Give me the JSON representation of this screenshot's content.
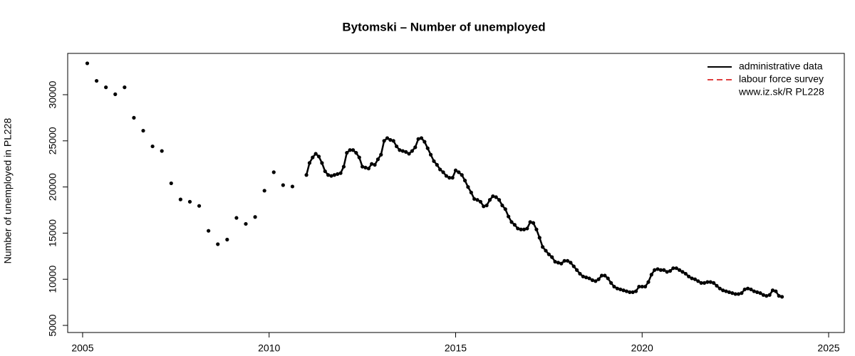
{
  "chart_data": {
    "type": "line",
    "title": "Bytomski – Number of unemployed",
    "y_label": "Number of unemployed in PL228",
    "legend_position": "top-right",
    "legend_note": "www.iz.sk/R PL228",
    "xlim": [
      2004.6,
      2025.42
    ],
    "xticks": [
      2005,
      2010,
      2015,
      2020,
      2025
    ],
    "ylim": [
      4230,
      34475
    ],
    "yticks": [
      5000,
      10000,
      15000,
      20000,
      25000,
      30000
    ],
    "grid": false,
    "series": [
      {
        "name": "administrative data",
        "color": "#000000",
        "x": [
          2005.125,
          2005.375,
          2005.625,
          2005.875,
          2006.125,
          2006.375,
          2006.625,
          2006.875,
          2007.125,
          2007.375,
          2007.625,
          2007.875,
          2008.125,
          2008.375,
          2008.625,
          2008.875,
          2009.125,
          2009.375,
          2009.625,
          2009.875,
          2010.125,
          2010.375,
          2010.625,
          2011,
          2011.083,
          2011.167,
          2011.25,
          2011.333,
          2011.417,
          2011.5,
          2011.583,
          2011.667,
          2011.75,
          2011.833,
          2011.917,
          2012,
          2012.083,
          2012.167,
          2012.25,
          2012.333,
          2012.417,
          2012.5,
          2012.583,
          2012.667,
          2012.75,
          2012.833,
          2012.917,
          2013,
          2013.083,
          2013.167,
          2013.25,
          2013.333,
          2013.417,
          2013.5,
          2013.583,
          2013.667,
          2013.75,
          2013.833,
          2013.917,
          2014,
          2014.083,
          2014.167,
          2014.25,
          2014.333,
          2014.417,
          2014.5,
          2014.583,
          2014.667,
          2014.75,
          2014.833,
          2014.917,
          2015,
          2015.083,
          2015.167,
          2015.25,
          2015.333,
          2015.417,
          2015.5,
          2015.583,
          2015.667,
          2015.75,
          2015.833,
          2015.917,
          2016,
          2016.083,
          2016.167,
          2016.25,
          2016.333,
          2016.417,
          2016.5,
          2016.583,
          2016.667,
          2016.75,
          2016.833,
          2016.917,
          2017,
          2017.083,
          2017.167,
          2017.25,
          2017.333,
          2017.417,
          2017.5,
          2017.583,
          2017.667,
          2017.75,
          2017.833,
          2017.917,
          2018,
          2018.083,
          2018.167,
          2018.25,
          2018.333,
          2018.417,
          2018.5,
          2018.583,
          2018.667,
          2018.75,
          2018.833,
          2018.917,
          2019,
          2019.083,
          2019.167,
          2019.25,
          2019.333,
          2019.417,
          2019.5,
          2019.583,
          2019.667,
          2019.75,
          2019.833,
          2019.917,
          2020,
          2020.083,
          2020.167,
          2020.25,
          2020.333,
          2020.417,
          2020.5,
          2020.583,
          2020.667,
          2020.75,
          2020.833,
          2020.917,
          2021,
          2021.083,
          2021.167,
          2021.25,
          2021.333,
          2021.417,
          2021.5,
          2021.583,
          2021.667,
          2021.75,
          2021.833,
          2021.917,
          2022,
          2022.083,
          2022.167,
          2022.25,
          2022.333,
          2022.417,
          2022.5,
          2022.583,
          2022.667,
          2022.75,
          2022.833,
          2022.917,
          2023,
          2023.083,
          2023.167,
          2023.25,
          2023.333,
          2023.417,
          2023.5,
          2023.583,
          2023.667,
          2023.75
        ],
        "values": [
          33400,
          31500,
          30800,
          30050,
          30800,
          27500,
          26100,
          24400,
          23900,
          20400,
          18650,
          18400,
          17950,
          15250,
          13800,
          14300,
          16650,
          16000,
          16750,
          19600,
          21600,
          20200,
          20050,
          21300,
          22600,
          23200,
          23600,
          23300,
          22600,
          21700,
          21300,
          21200,
          21300,
          21400,
          21500,
          22200,
          23700,
          24000,
          24000,
          23700,
          23200,
          22200,
          22100,
          22000,
          22500,
          22400,
          23000,
          23500,
          25000,
          25300,
          25100,
          25000,
          24400,
          24000,
          23900,
          23800,
          23600,
          23900,
          24300,
          25200,
          25300,
          24900,
          24200,
          23500,
          22800,
          22400,
          21900,
          21600,
          21200,
          21000,
          21000,
          21800,
          21600,
          21300,
          20700,
          20000,
          19400,
          18700,
          18600,
          18400,
          17900,
          18000,
          18600,
          19000,
          18900,
          18600,
          18000,
          17600,
          16800,
          16200,
          15900,
          15500,
          15400,
          15400,
          15500,
          16200,
          16100,
          15400,
          14500,
          13500,
          13100,
          12700,
          12400,
          11900,
          11800,
          11700,
          12000,
          12000,
          11800,
          11400,
          11000,
          10600,
          10300,
          10200,
          10100,
          9900,
          9800,
          10000,
          10400,
          10400,
          10100,
          9600,
          9200,
          9000,
          8900,
          8800,
          8700,
          8600,
          8600,
          8700,
          9200,
          9200,
          9200,
          9700,
          10500,
          11000,
          11100,
          11000,
          11000,
          10800,
          10900,
          11200,
          11200,
          11000,
          10800,
          10600,
          10300,
          10100,
          10000,
          9800,
          9600,
          9600,
          9700,
          9700,
          9600,
          9300,
          9000,
          8800,
          8700,
          8600,
          8500,
          8400,
          8400,
          8500,
          8900,
          9000,
          8900,
          8700,
          8600,
          8500,
          8300,
          8200,
          8300,
          8800,
          8700,
          8200,
          8100
        ]
      },
      {
        "name": "labour force survey",
        "color": "#e04040",
        "dashed": true
      }
    ]
  }
}
